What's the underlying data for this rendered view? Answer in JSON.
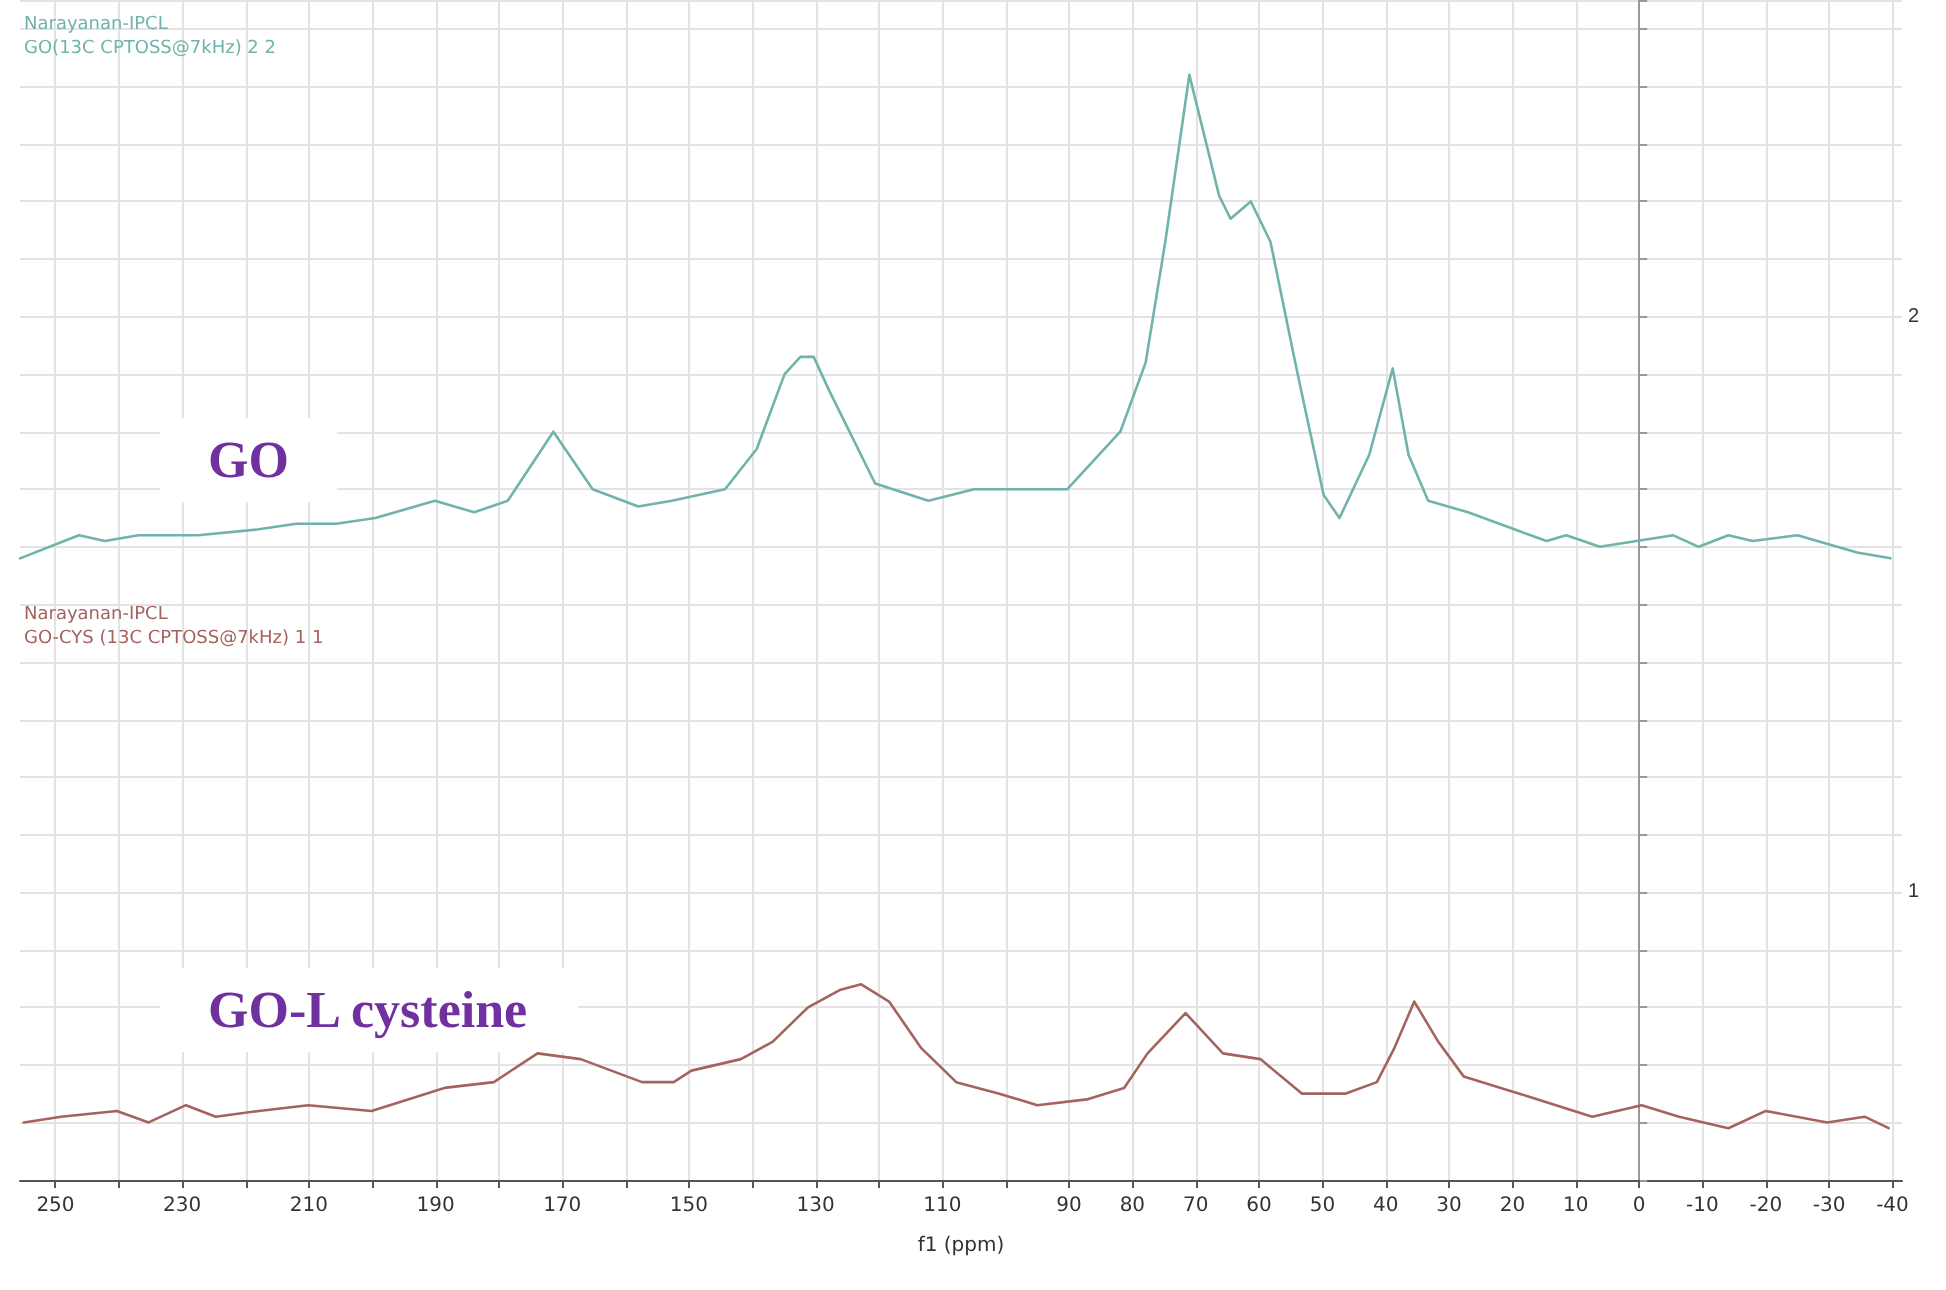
{
  "chart_data": {
    "type": "line",
    "xlabel": "f1 (ppm)",
    "annotations": [
      "Narayanan-IPCL",
      "GO(13C CPTOSS@7kHz) 2 2",
      "Narayanan-IPCL",
      "GO-CYS (13C CPTOSS@7kHz) 1 1"
    ],
    "xlim": [
      255.6,
      -41.5
    ],
    "xticks": [
      250,
      {
        "value": 240,
        "label": null
      },
      230,
      {
        "value": 220,
        "label": null
      },
      210,
      {
        "value": 200,
        "label": null
      },
      190,
      {
        "value": 180,
        "label": null
      },
      170,
      {
        "value": 160,
        "label": null
      },
      150,
      {
        "value": 140,
        "label": null
      },
      130,
      {
        "value": 120,
        "label": null
      },
      110,
      {
        "value": 100,
        "label": null
      },
      90,
      80,
      70,
      60,
      50,
      40,
      30,
      20,
      10,
      0,
      -10,
      -20,
      -30,
      -40
    ],
    "ylim": [
      0.5,
      2.55
    ],
    "yticks": [
      {
        "value": 0.5,
        "label": null
      },
      {
        "value": 0.6,
        "label": null
      },
      {
        "value": 0.7,
        "label": null
      },
      {
        "value": 0.8,
        "label": null
      },
      {
        "value": 0.9,
        "label": null
      },
      1,
      {
        "value": 1.1,
        "label": null
      },
      {
        "value": 1.2,
        "label": null
      },
      {
        "value": 1.3,
        "label": null
      },
      {
        "value": 1.4,
        "label": null
      },
      {
        "value": 1.5,
        "label": null
      },
      {
        "value": 1.6,
        "label": null
      },
      {
        "value": 1.7,
        "label": null
      },
      {
        "value": 1.8,
        "label": null
      },
      {
        "value": 1.9,
        "label": null
      },
      2,
      {
        "value": 2.1,
        "label": null
      },
      {
        "value": 2.2,
        "label": null
      },
      {
        "value": 2.3,
        "label": null
      },
      {
        "value": 2.4,
        "label": null
      },
      {
        "value": 2.5,
        "label": null
      }
    ],
    "grid": true,
    "marker": "none",
    "series": [
      {
        "name": "GO",
        "color": "#6fb3ab",
        "x": [
          255.6,
          246.3,
          242.2,
          236.9,
          227.5,
          218.2,
          212.0,
          205.7,
          199.5,
          190.1,
          183.9,
          178.6,
          171.4,
          165.2,
          158.0,
          152.7,
          144.3,
          139.3,
          134.9,
          132.4,
          130.3,
          127.8,
          120.6,
          112.2,
          105.0,
          90.3,
          81.9,
          77.9,
          74.8,
          71.0,
          66.3,
          64.5,
          61.3,
          58.2,
          53.9,
          49.8,
          47.3,
          42.6,
          38.9,
          36.4,
          33.3,
          27.0,
          19.6,
          14.6,
          11.5,
          6.2,
          -5.4,
          -9.4,
          -14.1,
          -17.9,
          -25.0,
          -34.4,
          -39.7
        ],
        "values": [
          1.58,
          1.62,
          1.61,
          1.62,
          1.62,
          1.63,
          1.64,
          1.64,
          1.65,
          1.68,
          1.66,
          1.68,
          1.8,
          1.7,
          1.67,
          1.68,
          1.7,
          1.77,
          1.9,
          1.93,
          1.93,
          1.87,
          1.71,
          1.68,
          1.7,
          1.7,
          1.8,
          1.92,
          2.13,
          2.42,
          2.21,
          2.17,
          2.2,
          2.13,
          1.9,
          1.69,
          1.65,
          1.76,
          1.91,
          1.76,
          1.68,
          1.66,
          1.63,
          1.61,
          1.62,
          1.6,
          1.62,
          1.6,
          1.62,
          1.61,
          1.62,
          1.59,
          1.58
        ]
      },
      {
        "name": "GO-L cysteine",
        "color": "#a5635f",
        "x": [
          255.0,
          249.1,
          240.3,
          235.3,
          229.4,
          224.7,
          217.9,
          210.1,
          200.1,
          188.6,
          180.8,
          173.9,
          167.1,
          157.4,
          152.4,
          149.6,
          141.8,
          136.8,
          131.2,
          126.2,
          122.8,
          118.4,
          113.4,
          107.8,
          101.0,
          95.0,
          87.2,
          81.3,
          77.6,
          71.6,
          65.7,
          59.8,
          53.2,
          46.4,
          41.4,
          38.6,
          35.5,
          31.7,
          27.7,
          18.9,
          7.4,
          -0.4,
          -6.3,
          -14.1,
          -20.0,
          -29.7,
          -35.6,
          -39.4
        ],
        "values": [
          0.6,
          0.61,
          0.62,
          0.6,
          0.63,
          0.61,
          0.62,
          0.63,
          0.62,
          0.66,
          0.67,
          0.72,
          0.71,
          0.67,
          0.67,
          0.69,
          0.71,
          0.74,
          0.8,
          0.83,
          0.84,
          0.81,
          0.73,
          0.67,
          0.65,
          0.63,
          0.64,
          0.66,
          0.72,
          0.79,
          0.72,
          0.71,
          0.65,
          0.65,
          0.67,
          0.73,
          0.81,
          0.74,
          0.68,
          0.65,
          0.61,
          0.63,
          0.61,
          0.59,
          0.62,
          0.6,
          0.61,
          0.59
        ]
      }
    ]
  }
}
